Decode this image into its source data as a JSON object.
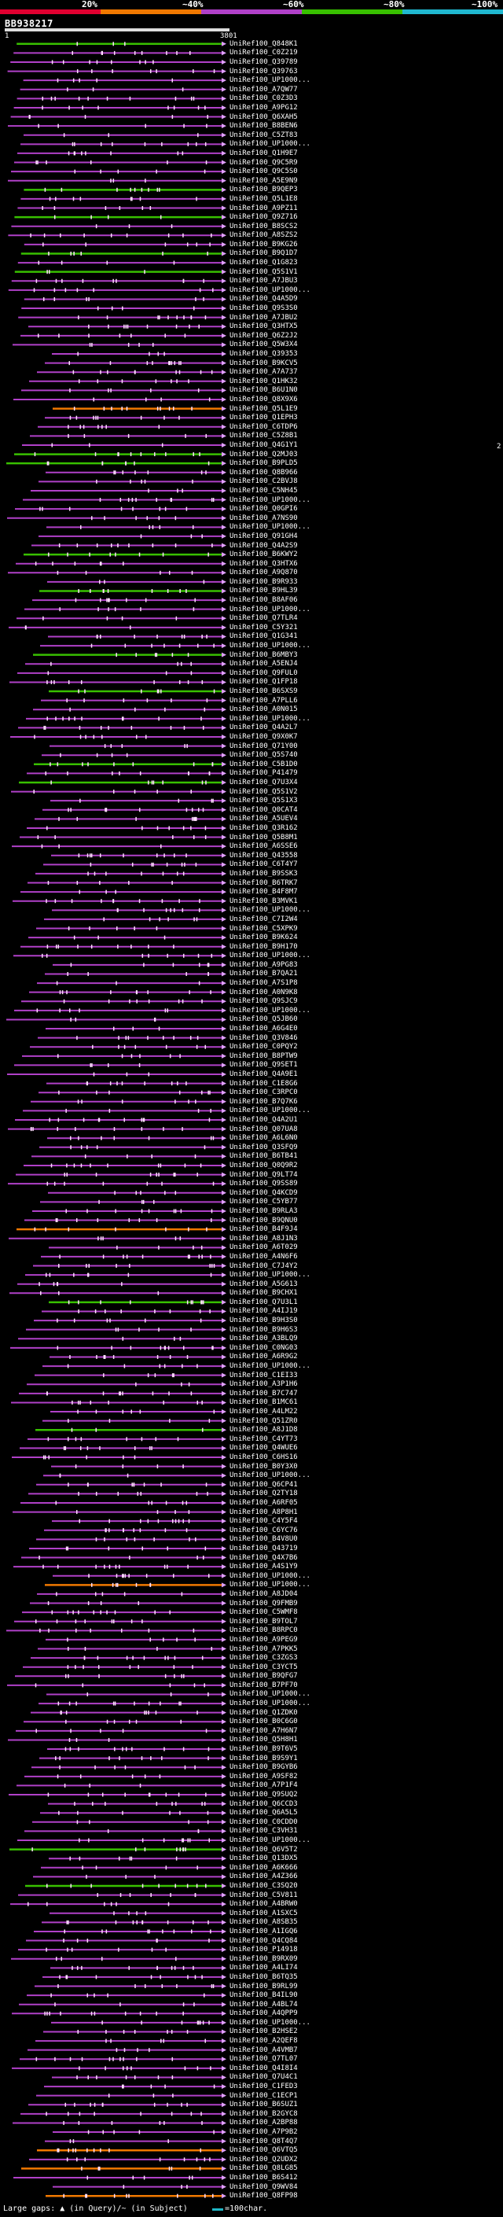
{
  "legend": {
    "items": [
      {
        "label": "20%",
        "color": "#e00030"
      },
      {
        "label": "~40%",
        "color": "#f07800"
      },
      {
        "label": "~60%",
        "color": "#b040c8"
      },
      {
        "label": "~80%",
        "color": "#38c000"
      },
      {
        "label": "~100%",
        "color": "#20b8d0"
      }
    ]
  },
  "query": {
    "id": "BB938217",
    "start": "1",
    "end": "3801"
  },
  "hits": [
    {
      "id": "UniRef100_Q848K1",
      "color": "green"
    },
    {
      "id": "UniRef100_C0Z219",
      "color": "magenta"
    },
    {
      "id": "UniRef100_Q39789",
      "color": "magenta"
    },
    {
      "id": "UniRef100_Q39763",
      "color": "magenta"
    },
    {
      "id": "UniRef100_UP1000...",
      "color": "magenta"
    },
    {
      "id": "UniRef100_A7QW77",
      "color": "magenta"
    },
    {
      "id": "UniRef100_C0Z3D3",
      "color": "magenta"
    },
    {
      "id": "UniRef100_A9PG12",
      "color": "magenta"
    },
    {
      "id": "UniRef100_Q6XAH5",
      "color": "magenta"
    },
    {
      "id": "UniRef100_B8BEN6",
      "color": "magenta"
    },
    {
      "id": "UniRef100_C5ZT83",
      "color": "magenta"
    },
    {
      "id": "UniRef100_UP1000...",
      "color": "magenta"
    },
    {
      "id": "UniRef100_Q1H9E7",
      "color": "magenta"
    },
    {
      "id": "UniRef100_Q9C5R9",
      "color": "magenta"
    },
    {
      "id": "UniRef100_Q9C5S0",
      "color": "magenta"
    },
    {
      "id": "UniRef100_A5E9N9",
      "color": "magenta"
    },
    {
      "id": "UniRef100_B9QEP3",
      "color": "green"
    },
    {
      "id": "UniRef100_Q5L1E8",
      "color": "magenta"
    },
    {
      "id": "UniRef100_A9PZ11",
      "color": "magenta"
    },
    {
      "id": "UniRef100_Q9Z716",
      "color": "green"
    },
    {
      "id": "UniRef100_B8SCS2",
      "color": "magenta"
    },
    {
      "id": "UniRef100_A8SZS2",
      "color": "magenta"
    },
    {
      "id": "UniRef100_B9KG26",
      "color": "magenta"
    },
    {
      "id": "UniRef100_B9Q1D7",
      "color": "green"
    },
    {
      "id": "UniRef100_Q1G823",
      "color": "magenta"
    },
    {
      "id": "UniRef100_Q5S1V1",
      "color": "green"
    },
    {
      "id": "UniRef100_A7JBU3",
      "color": "magenta"
    },
    {
      "id": "UniRef100_UP1000...",
      "color": "magenta"
    },
    {
      "id": "UniRef100_Q4A5D9",
      "color": "magenta"
    },
    {
      "id": "UniRef100_Q9S3S0",
      "color": "magenta"
    },
    {
      "id": "UniRef100_A7JBU2",
      "color": "magenta"
    },
    {
      "id": "UniRef100_Q3HTX5",
      "color": "magenta"
    },
    {
      "id": "UniRef100_Q6Z2J2",
      "color": "magenta"
    },
    {
      "id": "UniRef100_Q5W3X4",
      "color": "magenta"
    },
    {
      "id": "UniRef100_Q39353",
      "color": "magenta"
    },
    {
      "id": "UniRef100_B9KCV5",
      "color": "magenta"
    },
    {
      "id": "UniRef100_A7A737",
      "color": "magenta"
    },
    {
      "id": "UniRef100_Q1HK32",
      "color": "magenta"
    },
    {
      "id": "UniRef100_B6U1N0",
      "color": "magenta"
    },
    {
      "id": "UniRef100_Q8X9X6",
      "color": "magenta"
    },
    {
      "id": "UniRef100_Q5L1E9",
      "color": "orange"
    },
    {
      "id": "UniRef100_Q1EPH3",
      "color": "magenta"
    },
    {
      "id": "UniRef100_C6TDP6",
      "color": "magenta"
    },
    {
      "id": "UniRef100_C5Z8B1",
      "color": "magenta"
    },
    {
      "id": "UniRef100_Q4G1Y1",
      "color": "magenta"
    },
    {
      "id": "UniRef100_Q2MJ03",
      "color": "green"
    },
    {
      "id": "UniRef100_B9PLD5",
      "color": "green"
    },
    {
      "id": "UniRef100_Q8B966",
      "color": "magenta"
    },
    {
      "id": "UniRef100_C2BVJ8",
      "color": "magenta"
    },
    {
      "id": "UniRef100_C5NH45",
      "color": "magenta"
    },
    {
      "id": "UniRef100_UP1000...",
      "color": "magenta"
    },
    {
      "id": "UniRef100_Q0GPI6",
      "color": "magenta"
    },
    {
      "id": "UniRef100_A7NS90",
      "color": "magenta"
    },
    {
      "id": "UniRef100_UP1000...",
      "color": "magenta"
    },
    {
      "id": "UniRef100_Q91GH4",
      "color": "magenta"
    },
    {
      "id": "UniRef100_Q4A2S9",
      "color": "magenta"
    },
    {
      "id": "UniRef100_B6KWY2",
      "color": "green"
    },
    {
      "id": "UniRef100_Q3HTX6",
      "color": "magenta"
    },
    {
      "id": "UniRef100_A9Q870",
      "color": "magenta"
    },
    {
      "id": "UniRef100_B9R933",
      "color": "magenta"
    },
    {
      "id": "UniRef100_B9HL39",
      "color": "green"
    },
    {
      "id": "UniRef100_B8AF06",
      "color": "magenta"
    },
    {
      "id": "UniRef100_UP1000...",
      "color": "magenta"
    },
    {
      "id": "UniRef100_Q7TLR4",
      "color": "magenta"
    },
    {
      "id": "UniRef100_C5Y321",
      "color": "magenta"
    },
    {
      "id": "UniRef100_Q1G341",
      "color": "magenta"
    },
    {
      "id": "UniRef100_UP1000...",
      "color": "magenta"
    },
    {
      "id": "UniRef100_B6MBY3",
      "color": "green"
    },
    {
      "id": "UniRef100_A5ENJ4",
      "color": "magenta"
    },
    {
      "id": "UniRef100_Q9FUL0",
      "color": "magenta"
    },
    {
      "id": "UniRef100_Q1FP18",
      "color": "magenta"
    },
    {
      "id": "UniRef100_B6SXS9",
      "color": "green"
    },
    {
      "id": "UniRef100_A7PLL6",
      "color": "magenta"
    },
    {
      "id": "UniRef100_A0N015",
      "color": "magenta"
    },
    {
      "id": "UniRef100_UP1000...",
      "color": "magenta"
    },
    {
      "id": "UniRef100_Q4A2L7",
      "color": "magenta"
    },
    {
      "id": "UniRef100_Q9X0K7",
      "color": "magenta"
    },
    {
      "id": "UniRef100_Q71Y00",
      "color": "magenta"
    },
    {
      "id": "UniRef100_Q5S740",
      "color": "magenta"
    },
    {
      "id": "UniRef100_C5B1D0",
      "color": "green"
    },
    {
      "id": "UniRef100_P41479",
      "color": "magenta"
    },
    {
      "id": "UniRef100_Q7U3X4",
      "color": "green"
    },
    {
      "id": "UniRef100_Q5S1V2",
      "color": "magenta"
    },
    {
      "id": "UniRef100_Q5S1X3",
      "color": "magenta"
    },
    {
      "id": "UniRef100_Q0CAT4",
      "color": "magenta"
    },
    {
      "id": "UniRef100_A5UEV4",
      "color": "magenta"
    },
    {
      "id": "UniRef100_Q3R162",
      "color": "magenta"
    },
    {
      "id": "UniRef100_Q5B8M1",
      "color": "magenta"
    },
    {
      "id": "UniRef100_A6SSE6",
      "color": "magenta"
    },
    {
      "id": "UniRef100_Q43558",
      "color": "magenta"
    },
    {
      "id": "UniRef100_C6T4Y7",
      "color": "magenta"
    },
    {
      "id": "UniRef100_B9SSK3",
      "color": "magenta"
    },
    {
      "id": "UniRef100_B6TRK7",
      "color": "magenta"
    },
    {
      "id": "UniRef100_B4F8M7",
      "color": "magenta"
    },
    {
      "id": "UniRef100_B3MVK1",
      "color": "magenta"
    },
    {
      "id": "UniRef100_UP1000...",
      "color": "magenta"
    },
    {
      "id": "UniRef100_C7I2W4",
      "color": "magenta"
    },
    {
      "id": "UniRef100_C5XPK9",
      "color": "magenta"
    },
    {
      "id": "UniRef100_B9K624",
      "color": "magenta"
    },
    {
      "id": "UniRef100_B9H170",
      "color": "magenta"
    },
    {
      "id": "UniRef100_UP1000...",
      "color": "magenta"
    },
    {
      "id": "UniRef100_A9PG83",
      "color": "magenta"
    },
    {
      "id": "UniRef100_B7QA21",
      "color": "magenta"
    },
    {
      "id": "UniRef100_A7S1P8",
      "color": "magenta"
    },
    {
      "id": "UniRef100_A0N9K8",
      "color": "magenta"
    },
    {
      "id": "UniRef100_Q9SJC9",
      "color": "magenta"
    },
    {
      "id": "UniRef100_UP1000...",
      "color": "magenta"
    },
    {
      "id": "UniRef100_Q5JB60",
      "color": "magenta"
    },
    {
      "id": "UniRef100_A6G4E0",
      "color": "magenta"
    },
    {
      "id": "UniRef100_Q3V846",
      "color": "magenta"
    },
    {
      "id": "UniRef100_C0PQY2",
      "color": "magenta"
    },
    {
      "id": "UniRef100_B8PTW9",
      "color": "magenta"
    },
    {
      "id": "UniRef100_Q9SET1",
      "color": "magenta"
    },
    {
      "id": "UniRef100_Q4A9E1",
      "color": "magenta"
    },
    {
      "id": "UniRef100_C1E8G6",
      "color": "magenta"
    },
    {
      "id": "UniRef100_C3RPC0",
      "color": "magenta"
    },
    {
      "id": "UniRef100_B7Q7K6",
      "color": "magenta"
    },
    {
      "id": "UniRef100_UP1000...",
      "color": "magenta"
    },
    {
      "id": "UniRef100_Q4A2U1",
      "color": "magenta"
    },
    {
      "id": "UniRef100_Q07UA8",
      "color": "magenta"
    },
    {
      "id": "UniRef100_A6L6N0",
      "color": "magenta"
    },
    {
      "id": "UniRef100_Q3SFQ9",
      "color": "magenta"
    },
    {
      "id": "UniRef100_B6TB41",
      "color": "magenta"
    },
    {
      "id": "UniRef100_Q0Q9R2",
      "color": "magenta"
    },
    {
      "id": "UniRef100_Q9LT74",
      "color": "magenta"
    },
    {
      "id": "UniRef100_Q9SS89",
      "color": "magenta"
    },
    {
      "id": "UniRef100_Q4KCD9",
      "color": "magenta"
    },
    {
      "id": "UniRef100_C5YB77",
      "color": "magenta"
    },
    {
      "id": "UniRef100_B9RLA3",
      "color": "magenta"
    },
    {
      "id": "UniRef100_B9QNU0",
      "color": "magenta"
    },
    {
      "id": "UniRef100_B4F9J4",
      "color": "orange"
    },
    {
      "id": "UniRef100_A8J1N3",
      "color": "magenta"
    },
    {
      "id": "UniRef100_A6T029",
      "color": "magenta"
    },
    {
      "id": "UniRef100_A4N6F6",
      "color": "magenta"
    },
    {
      "id": "UniRef100_C7J4Y2",
      "color": "magenta"
    },
    {
      "id": "UniRef100_UP1000...",
      "color": "magenta"
    },
    {
      "id": "UniRef100_A5G613",
      "color": "magenta"
    },
    {
      "id": "UniRef100_B9CHX1",
      "color": "magenta"
    },
    {
      "id": "UniRef100_Q7U3L1",
      "color": "green"
    },
    {
      "id": "UniRef100_A4IJ19",
      "color": "magenta"
    },
    {
      "id": "UniRef100_B9H3S0",
      "color": "magenta"
    },
    {
      "id": "UniRef100_B9H6S3",
      "color": "magenta"
    },
    {
      "id": "UniRef100_A3BLQ9",
      "color": "magenta"
    },
    {
      "id": "UniRef100_C0NG03",
      "color": "magenta"
    },
    {
      "id": "UniRef100_A6R9G2",
      "color": "magenta"
    },
    {
      "id": "UniRef100_UP1000...",
      "color": "magenta"
    },
    {
      "id": "UniRef100_C1EI33",
      "color": "magenta"
    },
    {
      "id": "UniRef100_A3P1H6",
      "color": "magenta"
    },
    {
      "id": "UniRef100_B7C747",
      "color": "magenta"
    },
    {
      "id": "UniRef100_B1MC61",
      "color": "magenta"
    },
    {
      "id": "UniRef100_A4LM22",
      "color": "magenta"
    },
    {
      "id": "UniRef100_Q51ZR0",
      "color": "magenta"
    },
    {
      "id": "UniRef100_A8J1D8",
      "color": "green"
    },
    {
      "id": "UniRef100_C4YT73",
      "color": "magenta"
    },
    {
      "id": "UniRef100_Q4WUE6",
      "color": "magenta"
    },
    {
      "id": "UniRef100_C6HS16",
      "color": "magenta"
    },
    {
      "id": "UniRef100_B0Y3X0",
      "color": "magenta"
    },
    {
      "id": "UniRef100_UP1000...",
      "color": "magenta"
    },
    {
      "id": "UniRef100_Q6CP41",
      "color": "magenta"
    },
    {
      "id": "UniRef100_Q2TY18",
      "color": "magenta"
    },
    {
      "id": "UniRef100_A6RF05",
      "color": "magenta"
    },
    {
      "id": "UniRef100_A8P8H1",
      "color": "magenta"
    },
    {
      "id": "UniRef100_C4Y5F4",
      "color": "magenta"
    },
    {
      "id": "UniRef100_C6YC76",
      "color": "magenta"
    },
    {
      "id": "UniRef100_B4V8U0",
      "color": "magenta"
    },
    {
      "id": "UniRef100_Q43719",
      "color": "magenta"
    },
    {
      "id": "UniRef100_Q4X7B6",
      "color": "magenta"
    },
    {
      "id": "UniRef100_A4S1Y9",
      "color": "magenta"
    },
    {
      "id": "UniRef100_UP1000...",
      "color": "magenta"
    },
    {
      "id": "UniRef100_UP1000...",
      "color": "orange"
    },
    {
      "id": "UniRef100_A8JD04",
      "color": "magenta"
    },
    {
      "id": "UniRef100_Q9FMB9",
      "color": "magenta"
    },
    {
      "id": "UniRef100_C5WMF8",
      "color": "magenta"
    },
    {
      "id": "UniRef100_B9TOL7",
      "color": "magenta"
    },
    {
      "id": "UniRef100_B8RPC0",
      "color": "magenta"
    },
    {
      "id": "UniRef100_A9PEG9",
      "color": "magenta"
    },
    {
      "id": "UniRef100_A7PKK5",
      "color": "magenta"
    },
    {
      "id": "UniRef100_C3ZGS3",
      "color": "magenta"
    },
    {
      "id": "UniRef100_C3YCT5",
      "color": "magenta"
    },
    {
      "id": "UniRef100_B9QFG7",
      "color": "magenta"
    },
    {
      "id": "UniRef100_B7PF70",
      "color": "magenta"
    },
    {
      "id": "UniRef100_UP1000...",
      "color": "magenta"
    },
    {
      "id": "UniRef100_UP1000...",
      "color": "magenta"
    },
    {
      "id": "UniRef100_Q1ZDK0",
      "color": "magenta"
    },
    {
      "id": "UniRef100_B0C6G0",
      "color": "magenta"
    },
    {
      "id": "UniRef100_A7H6N7",
      "color": "magenta"
    },
    {
      "id": "UniRef100_Q5H8H1",
      "color": "magenta"
    },
    {
      "id": "UniRef100_B9T6V5",
      "color": "magenta"
    },
    {
      "id": "UniRef100_B9S9Y1",
      "color": "magenta"
    },
    {
      "id": "UniRef100_B9GYB6",
      "color": "magenta"
    },
    {
      "id": "UniRef100_A9SF82",
      "color": "magenta"
    },
    {
      "id": "UniRef100_A7P1F4",
      "color": "magenta"
    },
    {
      "id": "UniRef100_Q9SUQ2",
      "color": "magenta"
    },
    {
      "id": "UniRef100_Q6CCD3",
      "color": "magenta"
    },
    {
      "id": "UniRef100_Q6A5L5",
      "color": "magenta"
    },
    {
      "id": "UniRef100_C0CDD0",
      "color": "magenta"
    },
    {
      "id": "UniRef100_C3VH31",
      "color": "magenta"
    },
    {
      "id": "UniRef100_UP1000...",
      "color": "magenta"
    },
    {
      "id": "UniRef100_Q6V5T2",
      "color": "green"
    },
    {
      "id": "UniRef100_Q13DX5",
      "color": "magenta"
    },
    {
      "id": "UniRef100_A6K666",
      "color": "magenta"
    },
    {
      "id": "UniRef100_A4Z366",
      "color": "magenta"
    },
    {
      "id": "UniRef100_C3SQ20",
      "color": "green"
    },
    {
      "id": "UniRef100_C5V811",
      "color": "magenta"
    },
    {
      "id": "UniRef100_A4BRW0",
      "color": "magenta"
    },
    {
      "id": "UniRef100_A1SXC5",
      "color": "magenta"
    },
    {
      "id": "UniRef100_A8SB35",
      "color": "magenta"
    },
    {
      "id": "UniRef100_A1IGQ6",
      "color": "magenta"
    },
    {
      "id": "UniRef100_Q4CQ84",
      "color": "magenta"
    },
    {
      "id": "UniRef100_P14918",
      "color": "magenta"
    },
    {
      "id": "UniRef100_B9RX09",
      "color": "magenta"
    },
    {
      "id": "UniRef100_A4LI74",
      "color": "magenta"
    },
    {
      "id": "UniRef100_B6TQ35",
      "color": "magenta"
    },
    {
      "id": "UniRef100_B9RL99",
      "color": "magenta"
    },
    {
      "id": "UniRef100_B4IL90",
      "color": "magenta"
    },
    {
      "id": "UniRef100_A4BL74",
      "color": "magenta"
    },
    {
      "id": "UniRef100_A4QPP9",
      "color": "magenta"
    },
    {
      "id": "UniRef100_UP1000...",
      "color": "magenta"
    },
    {
      "id": "UniRef100_B2HSE2",
      "color": "magenta"
    },
    {
      "id": "UniRef100_A2QEF8",
      "color": "magenta"
    },
    {
      "id": "UniRef100_A4VMB7",
      "color": "magenta"
    },
    {
      "id": "UniRef100_Q7TL07",
      "color": "magenta"
    },
    {
      "id": "UniRef100_Q4I8I4",
      "color": "magenta"
    },
    {
      "id": "UniRef100_Q7U4C1",
      "color": "magenta"
    },
    {
      "id": "UniRef100_C1FED3",
      "color": "magenta"
    },
    {
      "id": "UniRef100_C1ECP1",
      "color": "magenta"
    },
    {
      "id": "UniRef100_B6SUZ1",
      "color": "magenta"
    },
    {
      "id": "UniRef100_B2GYC8",
      "color": "magenta"
    },
    {
      "id": "UniRef100_A2BP88",
      "color": "magenta"
    },
    {
      "id": "UniRef100_A7P9B2",
      "color": "magenta"
    },
    {
      "id": "UniRef100_Q8T4Q7",
      "color": "magenta"
    },
    {
      "id": "UniRef100_Q6VTQ5",
      "color": "orange"
    },
    {
      "id": "UniRef100_Q2UDX2",
      "color": "magenta"
    },
    {
      "id": "UniRef100_Q8LG85",
      "color": "orange"
    },
    {
      "id": "UniRef100_B6S412",
      "color": "magenta"
    },
    {
      "id": "UniRef100_Q9WV84",
      "color": "magenta"
    },
    {
      "id": "UniRef100_Q8FP98",
      "color": "orange"
    }
  ],
  "side_marker": "2",
  "footer": {
    "gaps_label": "Large gaps: ▲ (in Query)/~ (in Subject)",
    "scale_label": "=100char."
  },
  "colors": {
    "green": "#38c000",
    "magenta": "#b040c8",
    "orange": "#f07800",
    "arrow": "#e0a0ff",
    "tick": "#ffe0ff"
  }
}
